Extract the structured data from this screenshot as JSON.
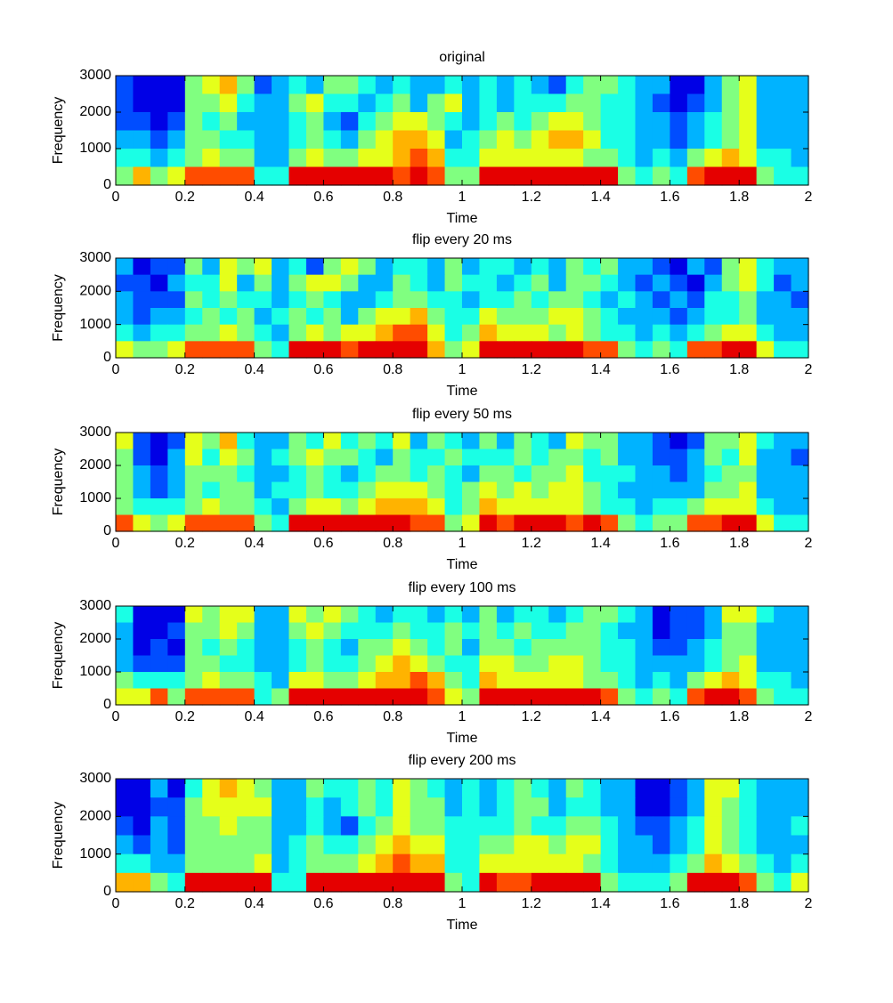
{
  "chart_data": [
    {
      "type": "heatmap",
      "title": "original",
      "xlabel": "Time",
      "ylabel": "Frequency",
      "colormap": "jet",
      "clim": [
        0,
        10
      ],
      "xlim": [
        0,
        2
      ],
      "ylim": [
        0,
        3000
      ],
      "xticks": [
        0,
        0.2,
        0.4,
        0.6,
        0.8,
        1,
        1.2,
        1.4,
        1.6,
        1.8,
        2
      ],
      "yticks": [
        0,
        1000,
        2000,
        3000
      ],
      "values": [
        [
          2,
          1,
          1,
          1,
          5,
          6,
          7,
          5,
          2,
          3,
          4,
          3,
          5,
          5,
          4,
          3,
          4,
          3,
          3,
          4,
          3,
          4,
          3,
          4,
          3,
          2,
          4,
          5,
          5,
          4,
          3,
          3,
          1,
          1,
          3,
          5,
          6,
          3,
          3,
          3
        ],
        [
          2,
          1,
          1,
          1,
          5,
          5,
          6,
          4,
          3,
          3,
          5,
          6,
          4,
          4,
          3,
          4,
          5,
          3,
          5,
          6,
          3,
          4,
          3,
          4,
          4,
          4,
          5,
          5,
          4,
          4,
          3,
          2,
          1,
          2,
          3,
          5,
          6,
          3,
          3,
          3
        ],
        [
          2,
          2,
          1,
          2,
          5,
          4,
          5,
          3,
          3,
          3,
          4,
          5,
          3,
          2,
          4,
          5,
          6,
          6,
          5,
          4,
          3,
          4,
          5,
          4,
          5,
          6,
          6,
          5,
          4,
          4,
          3,
          3,
          2,
          3,
          4,
          5,
          6,
          3,
          3,
          3
        ],
        [
          3,
          3,
          2,
          3,
          5,
          5,
          4,
          4,
          3,
          3,
          4,
          5,
          4,
          3,
          5,
          6,
          7,
          7,
          6,
          3,
          4,
          5,
          6,
          5,
          6,
          7,
          7,
          6,
          4,
          4,
          3,
          3,
          2,
          3,
          4,
          5,
          6,
          3,
          3,
          3
        ],
        [
          4,
          4,
          3,
          4,
          5,
          6,
          5,
          5,
          3,
          3,
          5,
          6,
          5,
          5,
          6,
          6,
          7,
          8,
          7,
          4,
          4,
          6,
          6,
          6,
          6,
          6,
          6,
          5,
          5,
          4,
          3,
          4,
          3,
          5,
          6,
          7,
          6,
          4,
          4,
          3
        ],
        [
          5,
          7,
          5,
          6,
          8,
          8,
          8,
          8,
          4,
          4,
          9,
          9,
          9,
          9,
          9,
          9,
          8,
          9,
          8,
          5,
          5,
          9,
          9,
          9,
          9,
          9,
          9,
          9,
          9,
          5,
          4,
          5,
          4,
          8,
          9,
          9,
          9,
          5,
          4,
          4
        ]
      ]
    },
    {
      "type": "heatmap",
      "title": "flip every 20 ms",
      "xlabel": "Time",
      "ylabel": "Frequency",
      "colormap": "jet",
      "clim": [
        0,
        10
      ],
      "xlim": [
        0,
        2
      ],
      "ylim": [
        0,
        3000
      ],
      "xticks": [
        0,
        0.2,
        0.4,
        0.6,
        0.8,
        1,
        1.2,
        1.4,
        1.6,
        1.8,
        2
      ],
      "yticks": [
        0,
        1000,
        2000,
        3000
      ],
      "values": [
        [
          3,
          1,
          2,
          2,
          5,
          3,
          6,
          5,
          6,
          3,
          4,
          2,
          5,
          6,
          5,
          3,
          4,
          4,
          3,
          5,
          3,
          4,
          4,
          3,
          4,
          3,
          5,
          4,
          5,
          3,
          3,
          2,
          1,
          3,
          2,
          5,
          6,
          4,
          3,
          3
        ],
        [
          2,
          2,
          1,
          3,
          4,
          4,
          6,
          3,
          5,
          3,
          5,
          6,
          6,
          5,
          3,
          3,
          5,
          4,
          3,
          5,
          4,
          4,
          3,
          4,
          5,
          3,
          5,
          5,
          4,
          3,
          2,
          3,
          2,
          1,
          3,
          5,
          6,
          4,
          2,
          3
        ],
        [
          3,
          2,
          2,
          2,
          5,
          4,
          5,
          4,
          4,
          3,
          4,
          5,
          4,
          3,
          3,
          4,
          5,
          5,
          4,
          4,
          3,
          4,
          4,
          5,
          4,
          5,
          5,
          4,
          3,
          4,
          3,
          2,
          3,
          2,
          4,
          4,
          5,
          3,
          3,
          2
        ],
        [
          3,
          2,
          3,
          3,
          4,
          5,
          4,
          5,
          3,
          4,
          5,
          4,
          5,
          3,
          5,
          6,
          6,
          7,
          5,
          4,
          4,
          6,
          5,
          5,
          5,
          6,
          6,
          5,
          4,
          3,
          3,
          3,
          2,
          3,
          4,
          4,
          5,
          3,
          3,
          3
        ],
        [
          4,
          3,
          4,
          4,
          5,
          5,
          6,
          5,
          4,
          3,
          5,
          6,
          5,
          6,
          6,
          7,
          8,
          8,
          6,
          4,
          5,
          7,
          6,
          6,
          6,
          5,
          6,
          5,
          4,
          4,
          3,
          4,
          3,
          4,
          5,
          6,
          6,
          4,
          3,
          3
        ],
        [
          6,
          5,
          5,
          6,
          8,
          8,
          8,
          8,
          5,
          4,
          9,
          9,
          9,
          8,
          9,
          9,
          9,
          9,
          7,
          5,
          6,
          9,
          9,
          9,
          9,
          9,
          9,
          8,
          8,
          5,
          4,
          5,
          4,
          8,
          8,
          9,
          9,
          6,
          4,
          4
        ]
      ]
    },
    {
      "type": "heatmap",
      "title": "flip every 50 ms",
      "xlabel": "Time",
      "ylabel": "Frequency",
      "colormap": "jet",
      "clim": [
        0,
        10
      ],
      "xlim": [
        0,
        2
      ],
      "ylim": [
        0,
        3000
      ],
      "xticks": [
        0,
        0.2,
        0.4,
        0.6,
        0.8,
        1,
        1.2,
        1.4,
        1.6,
        1.8,
        2
      ],
      "yticks": [
        0,
        1000,
        2000,
        3000
      ],
      "values": [
        [
          6,
          2,
          1,
          2,
          6,
          5,
          7,
          4,
          3,
          3,
          5,
          4,
          6,
          4,
          5,
          4,
          6,
          3,
          5,
          4,
          3,
          5,
          3,
          5,
          4,
          3,
          6,
          5,
          5,
          3,
          3,
          2,
          1,
          2,
          5,
          5,
          6,
          4,
          3,
          3
        ],
        [
          5,
          2,
          1,
          3,
          6,
          4,
          6,
          5,
          3,
          4,
          5,
          6,
          5,
          5,
          4,
          3,
          5,
          4,
          4,
          5,
          4,
          4,
          4,
          5,
          4,
          5,
          5,
          4,
          5,
          3,
          3,
          2,
          2,
          3,
          5,
          4,
          6,
          3,
          3,
          2
        ],
        [
          5,
          3,
          2,
          3,
          5,
          5,
          5,
          4,
          3,
          3,
          4,
          5,
          4,
          3,
          4,
          5,
          5,
          4,
          5,
          4,
          3,
          5,
          5,
          4,
          5,
          5,
          6,
          4,
          4,
          4,
          3,
          3,
          2,
          3,
          4,
          5,
          5,
          3,
          3,
          3
        ],
        [
          5,
          3,
          2,
          3,
          5,
          4,
          5,
          5,
          3,
          4,
          4,
          5,
          4,
          4,
          5,
          6,
          6,
          6,
          5,
          4,
          5,
          6,
          5,
          6,
          5,
          6,
          6,
          5,
          4,
          3,
          3,
          3,
          3,
          3,
          5,
          5,
          6,
          3,
          3,
          3
        ],
        [
          5,
          4,
          4,
          4,
          5,
          6,
          5,
          5,
          4,
          3,
          5,
          6,
          6,
          5,
          6,
          7,
          7,
          7,
          6,
          4,
          5,
          7,
          6,
          6,
          6,
          6,
          6,
          5,
          4,
          4,
          3,
          4,
          4,
          5,
          6,
          6,
          6,
          4,
          3,
          3
        ],
        [
          8,
          6,
          5,
          6,
          8,
          8,
          8,
          8,
          5,
          4,
          9,
          9,
          9,
          9,
          9,
          9,
          9,
          8,
          8,
          5,
          6,
          9,
          8,
          9,
          9,
          9,
          8,
          9,
          8,
          5,
          4,
          5,
          5,
          8,
          8,
          9,
          9,
          6,
          4,
          4
        ]
      ]
    },
    {
      "type": "heatmap",
      "title": "flip every 100 ms",
      "xlabel": "Time",
      "ylabel": "Frequency",
      "colormap": "jet",
      "clim": [
        0,
        10
      ],
      "xlim": [
        0,
        2
      ],
      "ylim": [
        0,
        3000
      ],
      "xticks": [
        0,
        0.2,
        0.4,
        0.6,
        0.8,
        1,
        1.2,
        1.4,
        1.6,
        1.8,
        2
      ],
      "yticks": [
        0,
        1000,
        2000,
        3000
      ],
      "values": [
        [
          4,
          1,
          1,
          1,
          6,
          5,
          6,
          6,
          3,
          3,
          6,
          5,
          6,
          5,
          4,
          3,
          4,
          4,
          3,
          4,
          3,
          5,
          3,
          4,
          4,
          3,
          4,
          5,
          5,
          4,
          3,
          1,
          2,
          2,
          3,
          6,
          6,
          4,
          3,
          3
        ],
        [
          3,
          1,
          1,
          2,
          5,
          5,
          6,
          5,
          3,
          3,
          5,
          6,
          5,
          4,
          4,
          4,
          5,
          4,
          4,
          5,
          4,
          5,
          4,
          5,
          4,
          4,
          5,
          5,
          4,
          3,
          3,
          1,
          2,
          2,
          3,
          5,
          5,
          3,
          3,
          3
        ],
        [
          3,
          1,
          2,
          1,
          5,
          4,
          5,
          4,
          3,
          3,
          4,
          5,
          4,
          3,
          5,
          5,
          6,
          5,
          4,
          5,
          3,
          5,
          5,
          4,
          5,
          5,
          5,
          5,
          4,
          4,
          3,
          2,
          2,
          3,
          4,
          5,
          5,
          3,
          3,
          3
        ],
        [
          3,
          2,
          2,
          2,
          5,
          5,
          4,
          4,
          3,
          3,
          4,
          5,
          4,
          4,
          5,
          6,
          7,
          6,
          5,
          4,
          4,
          6,
          6,
          5,
          5,
          6,
          6,
          5,
          4,
          4,
          3,
          3,
          3,
          3,
          4,
          5,
          6,
          3,
          3,
          3
        ],
        [
          5,
          4,
          4,
          4,
          5,
          6,
          5,
          5,
          4,
          3,
          6,
          6,
          5,
          5,
          6,
          7,
          7,
          8,
          7,
          5,
          4,
          7,
          6,
          6,
          6,
          6,
          6,
          5,
          5,
          4,
          3,
          4,
          3,
          5,
          6,
          7,
          6,
          4,
          4,
          3
        ],
        [
          6,
          6,
          8,
          5,
          8,
          8,
          8,
          8,
          4,
          5,
          9,
          9,
          9,
          9,
          9,
          9,
          9,
          9,
          8,
          6,
          5,
          9,
          9,
          9,
          9,
          9,
          9,
          9,
          8,
          5,
          4,
          5,
          4,
          8,
          9,
          9,
          8,
          5,
          4,
          4
        ]
      ]
    },
    {
      "type": "heatmap",
      "title": "flip every 200 ms",
      "xlabel": "Time",
      "ylabel": "Frequency",
      "colormap": "jet",
      "clim": [
        0,
        10
      ],
      "xlim": [
        0,
        2
      ],
      "ylim": [
        0,
        3000
      ],
      "xticks": [
        0,
        0.2,
        0.4,
        0.6,
        0.8,
        1,
        1.2,
        1.4,
        1.6,
        1.8,
        2
      ],
      "yticks": [
        0,
        1000,
        2000,
        3000
      ],
      "values": [
        [
          1,
          1,
          3,
          1,
          4,
          6,
          7,
          6,
          5,
          3,
          3,
          5,
          4,
          4,
          5,
          4,
          6,
          5,
          4,
          3,
          4,
          3,
          4,
          5,
          4,
          3,
          5,
          4,
          3,
          3,
          1,
          1,
          2,
          3,
          6,
          6,
          4,
          3,
          3,
          3
        ],
        [
          1,
          1,
          2,
          2,
          5,
          6,
          6,
          6,
          6,
          3,
          3,
          4,
          3,
          4,
          5,
          4,
          6,
          5,
          5,
          3,
          4,
          3,
          4,
          5,
          5,
          3,
          4,
          4,
          3,
          3,
          1,
          1,
          2,
          3,
          6,
          5,
          4,
          3,
          3,
          3
        ],
        [
          2,
          1,
          3,
          2,
          5,
          5,
          6,
          5,
          5,
          3,
          3,
          4,
          3,
          2,
          4,
          5,
          6,
          5,
          5,
          4,
          4,
          4,
          4,
          5,
          4,
          4,
          5,
          5,
          4,
          3,
          2,
          2,
          3,
          4,
          6,
          5,
          4,
          3,
          3,
          4
        ],
        [
          3,
          2,
          3,
          2,
          5,
          5,
          5,
          5,
          5,
          3,
          4,
          5,
          4,
          4,
          5,
          6,
          7,
          6,
          6,
          4,
          4,
          5,
          5,
          6,
          6,
          5,
          6,
          6,
          4,
          3,
          3,
          2,
          3,
          4,
          6,
          5,
          4,
          3,
          3,
          3
        ],
        [
          4,
          4,
          3,
          3,
          5,
          5,
          5,
          5,
          6,
          3,
          4,
          5,
          5,
          5,
          6,
          7,
          8,
          7,
          7,
          4,
          4,
          6,
          6,
          6,
          6,
          6,
          6,
          5,
          4,
          3,
          3,
          3,
          4,
          5,
          7,
          6,
          5,
          4,
          3,
          4
        ],
        [
          7,
          7,
          5,
          4,
          9,
          9,
          9,
          9,
          9,
          4,
          4,
          9,
          9,
          9,
          9,
          9,
          9,
          9,
          9,
          5,
          4,
          9,
          8,
          8,
          9,
          9,
          9,
          9,
          5,
          4,
          4,
          4,
          5,
          9,
          9,
          9,
          8,
          5,
          4,
          6
        ]
      ]
    }
  ]
}
